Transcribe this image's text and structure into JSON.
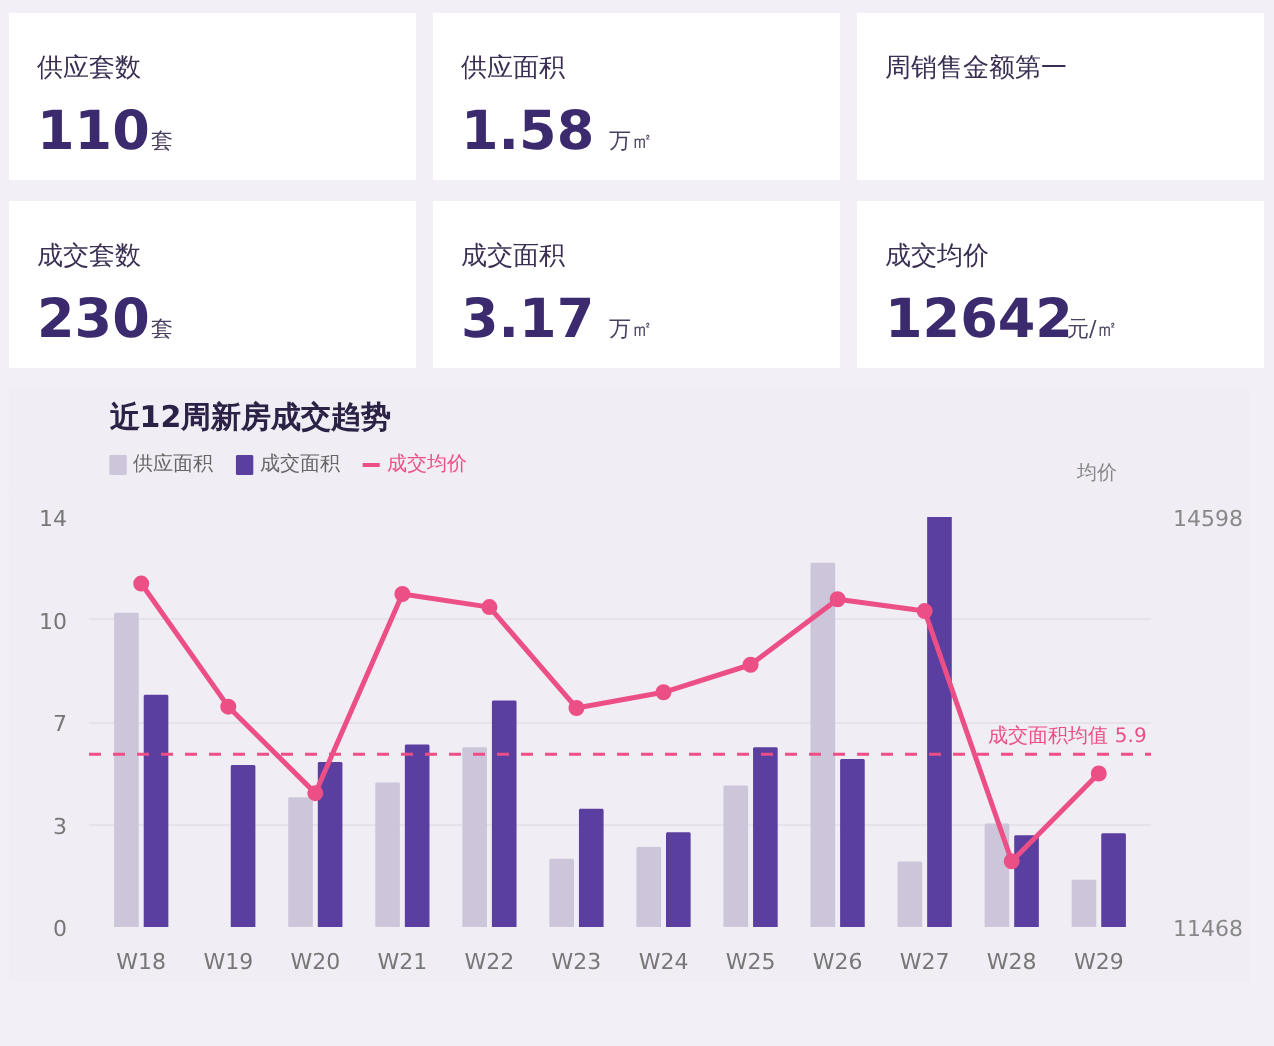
{
  "chart_data": [
    {
      "type": "other",
      "title": "供应套数",
      "annotations": [
        "110",
        "套"
      ]
    },
    {
      "type": "other",
      "title": "供应面积",
      "annotations": [
        "1.58",
        "万㎡"
      ]
    },
    {
      "type": "other",
      "title": "周销售金额第一"
    },
    {
      "type": "other",
      "title": "成交套数",
      "annotations": [
        "230",
        "套"
      ]
    },
    {
      "type": "other",
      "title": "成交面积",
      "annotations": [
        "3.17",
        "万㎡"
      ]
    },
    {
      "type": "other",
      "title": "成交均价",
      "annotations": [
        "12642",
        "元/㎡"
      ]
    },
    {
      "type": "bar",
      "title": "近12周新房成交趋势",
      "y2label": "均价",
      "categories": [
        "W18",
        "W19",
        "W20",
        "W21",
        "W22",
        "W23",
        "W24",
        "W25",
        "W26",
        "W27",
        "W28",
        "W29"
      ],
      "series": [
        {
          "name": "供应面积",
          "color": "#cdc6da",
          "values": [
            10.7,
            null,
            4.4,
            4.9,
            6.1,
            2.3,
            2.7,
            4.8,
            12.4,
            2.2,
            3.5,
            1.58
          ]
        },
        {
          "name": "成交面积",
          "color": "#5b3fa0",
          "values": [
            7.9,
            5.5,
            5.6,
            6.2,
            7.7,
            4.0,
            3.2,
            6.1,
            5.7,
            14.0,
            3.1,
            3.17
          ]
        },
        {
          "name": "成交均价",
          "type": "line",
          "axis": "y2",
          "color": "#ec4f86",
          "marker": "circle",
          "line_style": "solid",
          "values": [
            14090,
            13150,
            12490,
            14010,
            13910,
            13140,
            13260,
            13470,
            13970,
            13880,
            11970,
            12640
          ]
        }
      ],
      "ylim": [
        0,
        14
      ],
      "yticks": [
        0,
        {
          "value": 3.5,
          "label": "3"
        },
        7,
        {
          "value": 10.5,
          "label": "10"
        },
        14
      ],
      "y2lim": [
        11468,
        14598
      ],
      "y2ticks": [
        11468,
        14598
      ],
      "ref_lines": [
        {
          "axis": "y",
          "value": 5.9,
          "label": "成交面积均值 5.9",
          "color": "#ec4f86",
          "line_style": "dashed"
        }
      ],
      "grid": "y",
      "legend": "top left"
    }
  ]
}
